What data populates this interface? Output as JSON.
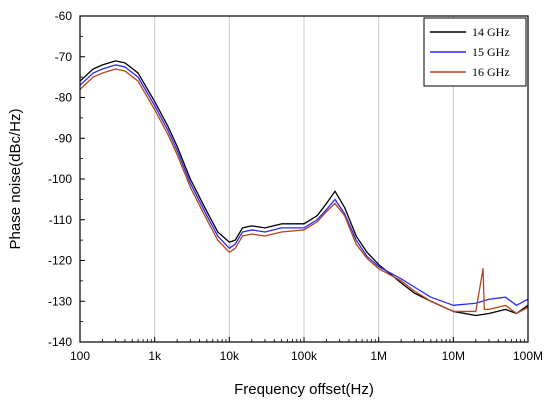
{
  "chart_data": {
    "type": "line",
    "xlabel": "Frequency offset(Hz)",
    "ylabel": "Phase noise(dBc/Hz)",
    "x_scale": "log",
    "xlim": [
      100,
      100000000
    ],
    "ylim": [
      -140,
      -60
    ],
    "x_ticks": [
      {
        "value": 100,
        "label": "100"
      },
      {
        "value": 1000,
        "label": "1k"
      },
      {
        "value": 10000,
        "label": "10k"
      },
      {
        "value": 100000,
        "label": "100k"
      },
      {
        "value": 1000000,
        "label": "1M"
      },
      {
        "value": 10000000,
        "label": "10M"
      },
      {
        "value": 100000000,
        "label": "100M"
      }
    ],
    "y_ticks": [
      -60,
      -70,
      -80,
      -90,
      -100,
      -110,
      -120,
      -130,
      -140
    ],
    "grid": "vertical lines at decades",
    "legend": "top-right",
    "series": [
      {
        "name": "14 GHz",
        "color": "#000000",
        "points": [
          [
            100,
            -76
          ],
          [
            150,
            -73
          ],
          [
            200,
            -72
          ],
          [
            300,
            -71
          ],
          [
            400,
            -71.5
          ],
          [
            600,
            -74
          ],
          [
            1000,
            -81
          ],
          [
            1500,
            -87
          ],
          [
            2000,
            -92
          ],
          [
            3000,
            -100
          ],
          [
            5000,
            -108
          ],
          [
            7000,
            -113
          ],
          [
            10000,
            -115.5
          ],
          [
            12000,
            -115
          ],
          [
            15000,
            -112
          ],
          [
            20000,
            -111.5
          ],
          [
            30000,
            -112
          ],
          [
            50000,
            -111
          ],
          [
            100000,
            -111
          ],
          [
            150000,
            -109
          ],
          [
            200000,
            -106
          ],
          [
            260000,
            -103
          ],
          [
            350000,
            -107
          ],
          [
            500000,
            -114
          ],
          [
            700000,
            -118
          ],
          [
            1000000,
            -121
          ],
          [
            2000000,
            -125.5
          ],
          [
            3000000,
            -128
          ],
          [
            5000000,
            -130
          ],
          [
            10000000,
            -132.5
          ],
          [
            20000000,
            -133.5
          ],
          [
            30000000,
            -133
          ],
          [
            50000000,
            -132
          ],
          [
            70000000,
            -133
          ],
          [
            100000000,
            -131
          ]
        ]
      },
      {
        "name": "15 GHz",
        "color": "#2b2bf5",
        "points": [
          [
            100,
            -77
          ],
          [
            150,
            -74
          ],
          [
            200,
            -73
          ],
          [
            300,
            -72
          ],
          [
            400,
            -72.5
          ],
          [
            600,
            -75
          ],
          [
            1000,
            -82
          ],
          [
            1500,
            -88
          ],
          [
            2000,
            -93
          ],
          [
            3000,
            -101
          ],
          [
            5000,
            -109
          ],
          [
            7000,
            -114
          ],
          [
            10000,
            -117
          ],
          [
            12000,
            -116
          ],
          [
            15000,
            -113
          ],
          [
            20000,
            -112.5
          ],
          [
            30000,
            -113
          ],
          [
            50000,
            -112
          ],
          [
            100000,
            -112
          ],
          [
            150000,
            -110
          ],
          [
            200000,
            -107.5
          ],
          [
            260000,
            -105
          ],
          [
            350000,
            -108.5
          ],
          [
            500000,
            -115
          ],
          [
            700000,
            -119
          ],
          [
            1000000,
            -121.5
          ],
          [
            2000000,
            -124.5
          ],
          [
            3000000,
            -126.5
          ],
          [
            5000000,
            -129
          ],
          [
            10000000,
            -131
          ],
          [
            20000000,
            -130.5
          ],
          [
            30000000,
            -129.5
          ],
          [
            50000000,
            -129
          ],
          [
            70000000,
            -131
          ],
          [
            100000000,
            -129.5
          ]
        ]
      },
      {
        "name": "16 GHz",
        "color": "#b5451b",
        "points": [
          [
            100,
            -78
          ],
          [
            150,
            -75
          ],
          [
            200,
            -74
          ],
          [
            300,
            -73
          ],
          [
            400,
            -73.5
          ],
          [
            600,
            -76
          ],
          [
            1000,
            -83
          ],
          [
            1500,
            -89
          ],
          [
            2000,
            -94
          ],
          [
            3000,
            -102
          ],
          [
            5000,
            -110
          ],
          [
            7000,
            -115
          ],
          [
            10000,
            -118
          ],
          [
            12000,
            -117
          ],
          [
            15000,
            -114
          ],
          [
            20000,
            -113.5
          ],
          [
            30000,
            -114
          ],
          [
            50000,
            -113
          ],
          [
            100000,
            -112.5
          ],
          [
            150000,
            -110.5
          ],
          [
            200000,
            -108
          ],
          [
            260000,
            -106
          ],
          [
            350000,
            -109
          ],
          [
            500000,
            -116
          ],
          [
            700000,
            -119.5
          ],
          [
            1000000,
            -122
          ],
          [
            2000000,
            -125
          ],
          [
            3000000,
            -127.5
          ],
          [
            5000000,
            -130
          ],
          [
            10000000,
            -132.5
          ],
          [
            20000000,
            -132.5
          ],
          [
            25000000,
            -122
          ],
          [
            26000000,
            -132
          ],
          [
            30000000,
            -132
          ],
          [
            50000000,
            -131
          ],
          [
            70000000,
            -133
          ],
          [
            100000000,
            -131.5
          ]
        ]
      }
    ]
  }
}
